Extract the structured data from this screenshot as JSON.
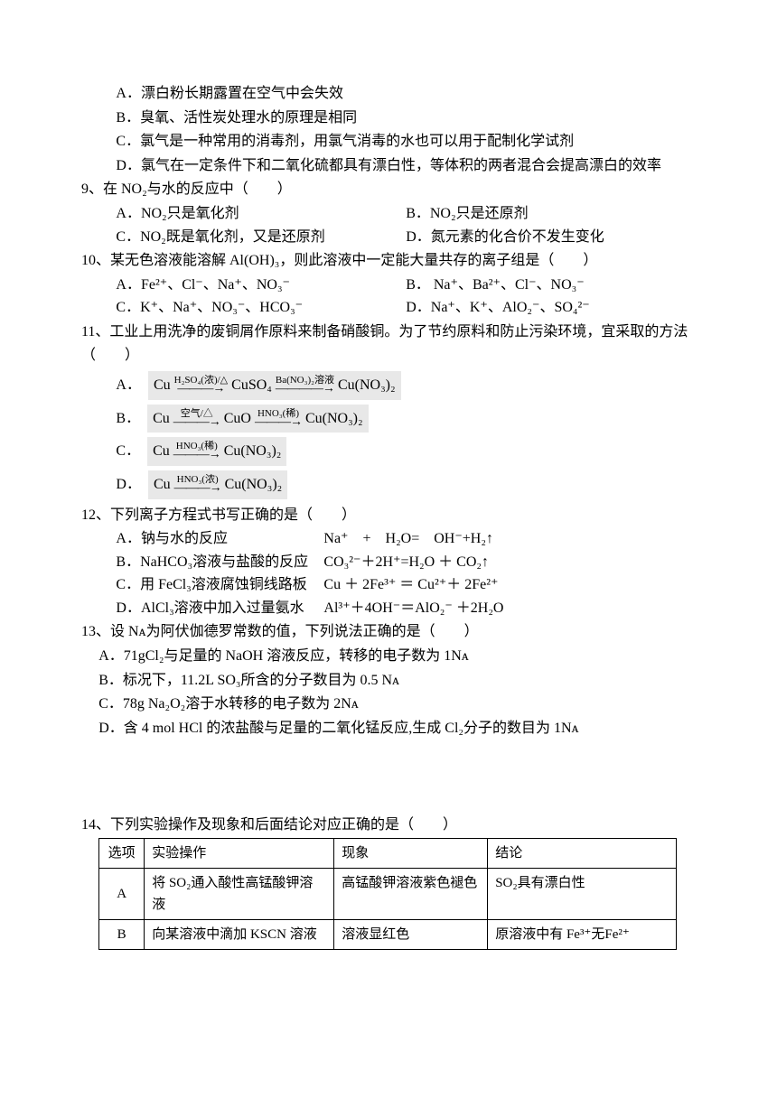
{
  "q8": {
    "A": "A．漂白粉长期露置在空气中会失效",
    "B": "B．臭氧、活性炭处理水的原理是相同",
    "C": "C．氯气是一种常用的消毒剂，用氯气消毒的水也可以用于配制化学试剂",
    "D": "D．氯气在一定条件下和二氧化硫都具有漂白性，等体积的两者混合会提高漂白的效率"
  },
  "q9": {
    "stem": "9、在 NO₂与水的反应中（　　）",
    "A": "A．NO₂只是氧化剂",
    "B": "B．NO₂只是还原剂",
    "C": "C．NO₂既是氧化剂，又是还原剂",
    "D": "D．氮元素的化合价不发生变化"
  },
  "q10": {
    "stem": "10、某无色溶液能溶解 Al(OH)₃，则此溶液中一定能大量共存的离子组是（　　）",
    "A": "A．Fe²⁺、Cl⁻、Na⁺、NO₃⁻",
    "B": "B．  Na⁺、Ba²⁺、Cl⁻、NO₃⁻",
    "C": "C．K⁺、Na⁺、NO₃⁻、HCO₃⁻",
    "D": "D．Na⁺、K⁺、AlO₂⁻、SO₄²⁻"
  },
  "q11": {
    "stem": "11、工业上用洗净的废铜屑作原料来制备硝酸铜。为了节约原料和防止污染环境，宜采取的方法（　　）",
    "reactions": {
      "A": {
        "steps": [
          "Cu",
          "H₂SO₄(浓)/△",
          "CuSO₄",
          "Ba(NO₃)₂溶液",
          "Cu(NO₃)₂"
        ]
      },
      "B": {
        "steps": [
          "Cu",
          "空气/△",
          "CuO",
          "HNO₃(稀)",
          "Cu(NO₃)₂"
        ]
      },
      "C": {
        "steps": [
          "Cu",
          "HNO₃(稀)",
          "Cu(NO₃)₂"
        ]
      },
      "D": {
        "steps": [
          "Cu",
          "HNO₃(浓)",
          "Cu(NO₃)₂"
        ]
      }
    }
  },
  "q12": {
    "stem": "12、下列离子方程式书写正确的是（　　）",
    "A": {
      "desc": "A．钠与水的反应",
      "eq": "Na⁺　+　H₂O=　OH⁻+H₂↑"
    },
    "B": {
      "desc": "B．NaHCO₃溶液与盐酸的反应",
      "eq": "CO₃²⁻＋2H⁺=H₂O ＋ CO₂↑"
    },
    "C": {
      "desc": "C．用 FeCl₃溶液腐蚀铜线路板",
      "eq": "Cu ＋ 2Fe³⁺ ＝ Cu²⁺＋ 2Fe²⁺"
    },
    "D": {
      "desc": "D．AlCl₃溶液中加入过量氨水",
      "eq": "Al³⁺＋4OH⁻＝AlO₂⁻ ＋2H₂O"
    }
  },
  "q13": {
    "stem": "13、设 Nᴀ为阿伏伽德罗常数的值，下列说法正确的是（　　）",
    "A": "A．71gCl₂与足量的 NaOH 溶液反应，转移的电子数为 1Nᴀ",
    "B": "B．标况下，11.2L SO₃所含的分子数目为 0.5 Nᴀ",
    "C": "C．78g Na₂O₂溶于水转移的电子数为 2Nᴀ",
    "D": "D．含 4 mol HCl 的浓盐酸与足量的二氧化锰反应,生成 Cl₂分子的数目为 1Nᴀ"
  },
  "q14": {
    "stem": "14、下列实验操作及现象和后面结论对应正确的是（　　）",
    "headers": {
      "c1": "选项",
      "c2": "实验操作",
      "c3": "现象",
      "c4": "结论"
    },
    "rows": [
      {
        "c1": "A",
        "c2": "将 SO₂通入酸性高锰酸钾溶液",
        "c3": "高锰酸钾溶液紫色褪色",
        "c4": "SO₂具有漂白性"
      },
      {
        "c1": "B",
        "c2": "向某溶液中滴加 KSCN 溶液",
        "c3": "溶液显红色",
        "c4": "原溶液中有 Fe³⁺无Fe²⁺"
      }
    ]
  }
}
